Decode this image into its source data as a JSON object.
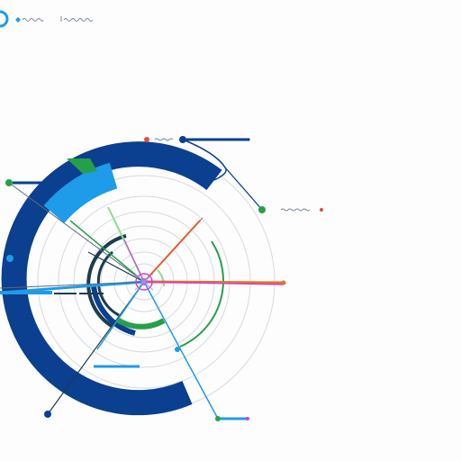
{
  "header": {
    "logo_icon": "circle-logo-icon",
    "left_glyphs_icon": "scribble-text-icon",
    "right_glyphs_icon": "scribble-text-icon"
  },
  "diagram": {
    "type": "radial-hub-diagram",
    "colors": {
      "navy": "#0b3f8f",
      "sky": "#1e9be9",
      "green": "#25a04a",
      "dark_teal": "#1b3d4f",
      "orange": "#e6741f",
      "magenta": "#d63bd6",
      "red": "#e34d3d",
      "light_green": "#8fdc93",
      "grey": "#c9ccd2"
    },
    "markers": {
      "red_dot": "red-dot-icon",
      "pink_dot": "pink-dot-icon",
      "magenta_dot": "magenta-dot-icon"
    }
  }
}
